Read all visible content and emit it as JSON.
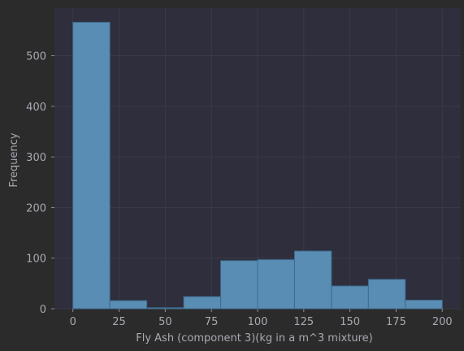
{
  "chart_data": {
    "type": "bar",
    "title": "",
    "xlabel": "Fly Ash (component 3)(kg in a m^3 mixture)",
    "ylabel": "Frequency",
    "bins": [
      {
        "start": 0,
        "end": 20,
        "count": 566
      },
      {
        "start": 20,
        "end": 40,
        "count": 16
      },
      {
        "start": 40,
        "end": 60,
        "count": 2
      },
      {
        "start": 60,
        "end": 80,
        "count": 24
      },
      {
        "start": 80,
        "end": 100,
        "count": 95
      },
      {
        "start": 100,
        "end": 120,
        "count": 97
      },
      {
        "start": 120,
        "end": 140,
        "count": 114
      },
      {
        "start": 140,
        "end": 160,
        "count": 45
      },
      {
        "start": 160,
        "end": 180,
        "count": 58
      },
      {
        "start": 180,
        "end": 200,
        "count": 17
      }
    ],
    "xticks": [
      0,
      25,
      50,
      75,
      100,
      125,
      150,
      175,
      200
    ],
    "yticks": [
      0,
      100,
      200,
      300,
      400,
      500
    ],
    "xlim": [
      -10,
      210
    ],
    "ylim": [
      0,
      594
    ],
    "grid": true,
    "colors": {
      "bar": "#5a8db3",
      "bar_edge": "#3e6a8c",
      "plot_bg": "#2e2e3c",
      "page_bg": "#2b2b2b"
    }
  }
}
